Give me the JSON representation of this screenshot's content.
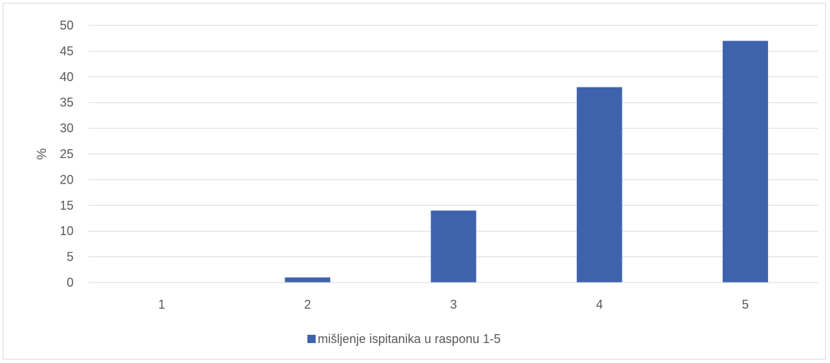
{
  "chart_data": {
    "type": "bar",
    "categories": [
      "1",
      "2",
      "3",
      "4",
      "5"
    ],
    "series": [
      {
        "name": "mišljenje ispitanika u rasponu 1-5",
        "values": [
          0,
          1,
          14,
          38,
          47
        ],
        "color": "#3e63ad"
      }
    ],
    "xlabel": "",
    "ylabel": "%",
    "ylim": [
      0,
      50
    ],
    "yticks": [
      "0",
      "5",
      "10",
      "15",
      "20",
      "25",
      "30",
      "35",
      "40",
      "45",
      "50"
    ],
    "grid": true,
    "legend_position": "bottom"
  }
}
